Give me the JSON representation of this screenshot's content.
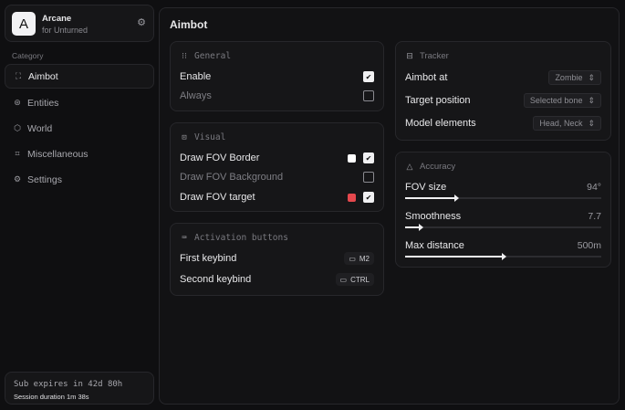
{
  "app": {
    "name": "Arcane",
    "subtitle": "for Unturned",
    "logo_letter": "A"
  },
  "sidebar": {
    "category_label": "Category",
    "items": [
      {
        "label": "Aimbot",
        "icon": "crosshair-icon",
        "active": true
      },
      {
        "label": "Entities",
        "icon": "scan-icon"
      },
      {
        "label": "World",
        "icon": "cube-icon"
      },
      {
        "label": "Miscellaneous",
        "icon": "grid-icon"
      },
      {
        "label": "Settings",
        "icon": "gear-icon"
      }
    ],
    "footer": {
      "sub": "Sub expires in 42d 80h",
      "session": "Session duration 1m 38s"
    }
  },
  "main": {
    "title": "Aimbot",
    "general": {
      "title": "General",
      "rows": [
        {
          "label": "Enable",
          "checked": true
        },
        {
          "label": "Always",
          "checked": false
        }
      ]
    },
    "visual": {
      "title": "Visual",
      "rows": [
        {
          "label": "Draw FOV Border",
          "checked": true,
          "color": "#ffffff"
        },
        {
          "label": "Draw FOV Background",
          "checked": false
        },
        {
          "label": "Draw FOV target",
          "checked": true,
          "color": "#e5484d"
        }
      ]
    },
    "activation": {
      "title": "Activation buttons",
      "rows": [
        {
          "label": "First keybind",
          "key": "M2"
        },
        {
          "label": "Second keybind",
          "key": "CTRL"
        }
      ]
    },
    "tracker": {
      "title": "Tracker",
      "rows": [
        {
          "label": "Aimbot at",
          "value": "Zombie"
        },
        {
          "label": "Target position",
          "value": "Selected bone"
        },
        {
          "label": "Model elements",
          "value": "Head, Neck"
        }
      ]
    },
    "accuracy": {
      "title": "Accuracy",
      "sliders": [
        {
          "label": "FOV size",
          "value": "94°",
          "fraction": 0.26
        },
        {
          "label": "Smoothness",
          "value": "7.7",
          "fraction": 0.077
        },
        {
          "label": "Max distance",
          "value": "500m",
          "fraction": 0.5
        }
      ]
    }
  }
}
